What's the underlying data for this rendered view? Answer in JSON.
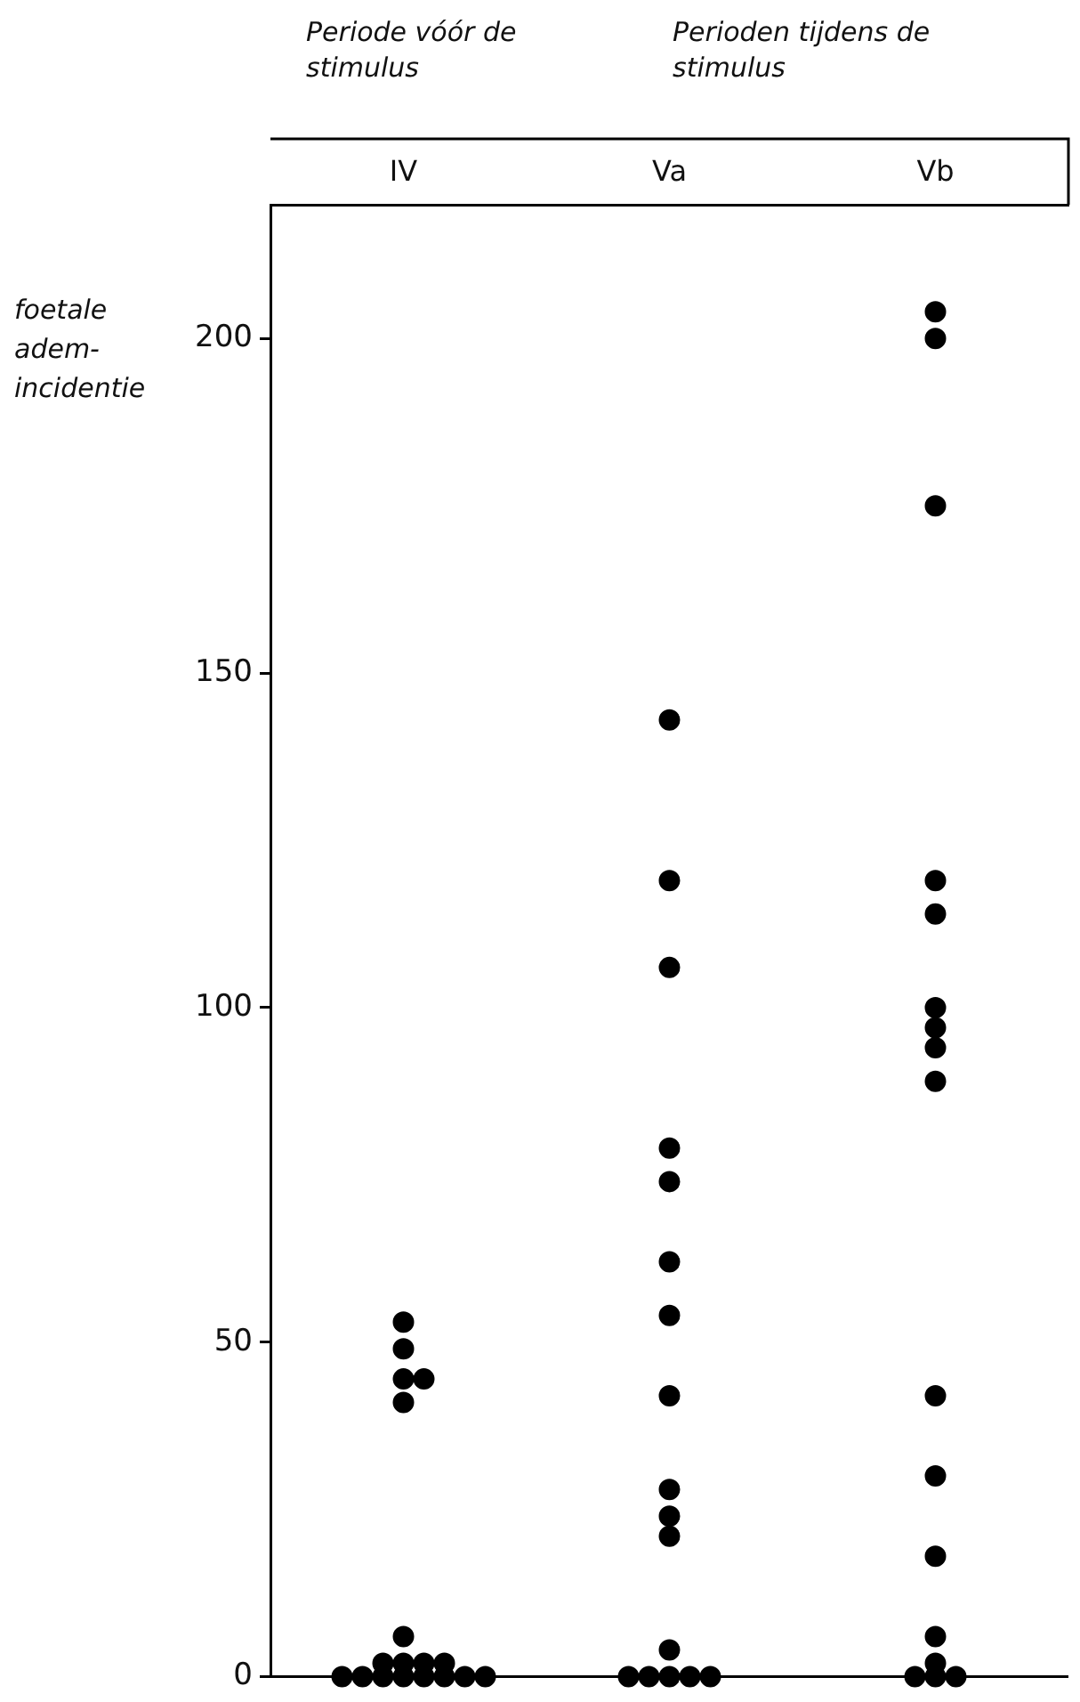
{
  "chart_data": {
    "type": "scatter",
    "categories": [
      "IV",
      "Va",
      "Vb"
    ],
    "ylabel": "foetale adem-incidentie",
    "annotations": [
      "Periode vóór de stimulus",
      "Perioden tijdens de stimulus"
    ],
    "series": [
      {
        "color": "#000000",
        "x": [
          "IV",
          "IV",
          "IV",
          "IV",
          "IV",
          "IV",
          "IV",
          "IV",
          "IV",
          "IV",
          "IV",
          "IV",
          "IV",
          "IV",
          "IV",
          "IV",
          "IV",
          "IV",
          "Va",
          "Va",
          "Va",
          "Va",
          "Va",
          "Va",
          "Va",
          "Va",
          "Va",
          "Va",
          "Va",
          "Va",
          "Va",
          "Va",
          "Va",
          "Va",
          "Va",
          "Vb",
          "Vb",
          "Vb",
          "Vb",
          "Vb",
          "Vb",
          "Vb",
          "Vb",
          "Vb",
          "Vb",
          "Vb",
          "Vb",
          "Vb",
          "Vb",
          "Vb",
          "Vb",
          "Vb"
        ],
        "values": [
          53,
          49,
          44.5,
          44.5,
          41,
          6,
          2,
          2,
          2,
          2,
          0,
          0,
          0,
          0,
          0,
          0,
          0,
          0,
          143,
          119,
          106,
          79,
          74,
          62,
          54,
          42,
          28,
          24,
          21,
          4,
          0,
          0,
          0,
          0,
          0,
          204,
          200,
          175,
          119,
          114,
          100,
          97,
          94,
          89,
          42,
          30,
          18,
          6,
          2,
          0,
          0,
          0
        ]
      }
    ],
    "ylim": [
      0,
      220
    ],
    "yticks": [
      0,
      50,
      100,
      150,
      200
    ],
    "grid": false,
    "legend": false,
    "marker": "circle"
  }
}
